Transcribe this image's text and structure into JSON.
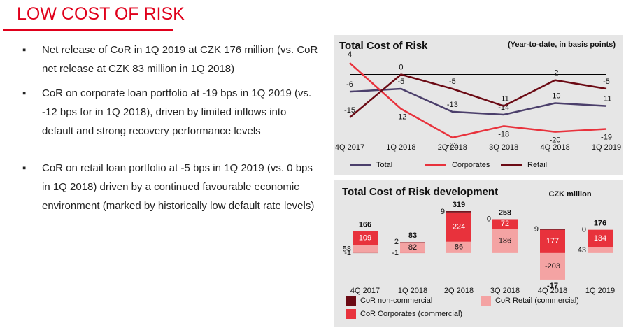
{
  "title": "LOW COST OF RISK",
  "bullets": [
    "Net release of CoR in 1Q 2019 at CZK 176 million (vs. CoR net release at CZK 83 million in 1Q 2018)",
    "CoR on corporate loan portfolio at -19 bps in 1Q 2019 (vs. -12 bps for in 1Q 2018), driven by limited inflows into default and strong recovery performance levels",
    "CoR on retail loan portfolio at -5 bps in 1Q 2019 (vs. 0 bps in 1Q 2018) driven by a continued favourable economic environment (marked by historically low default rate levels)"
  ],
  "chart_data": [
    {
      "type": "line",
      "title": "Total Cost of Risk",
      "subtitle": "(Year-to-date, in basis points)",
      "categories": [
        "4Q 2017",
        "1Q 2018",
        "2Q 2018",
        "3Q 2018",
        "4Q 2018",
        "1Q 2019"
      ],
      "series": [
        {
          "name": "Total",
          "color": "#4b3f6b",
          "values": [
            -6,
            -5,
            -13,
            -14,
            -10,
            -11
          ]
        },
        {
          "name": "Corporates",
          "color": "#e8323c",
          "values": [
            4,
            -12,
            -22,
            -18,
            -20,
            -19
          ]
        },
        {
          "name": "Retail",
          "color": "#6b0a14",
          "values": [
            -15,
            0,
            -5,
            -11,
            -2,
            -5
          ]
        }
      ],
      "ylim": [
        -24,
        5
      ],
      "legend": "bottom"
    },
    {
      "type": "stacked_bar",
      "title": "Total Cost of Risk development",
      "subtitle": "CZK million",
      "categories": [
        "4Q 2017",
        "1Q 2018",
        "2Q 2018",
        "3Q 2018",
        "4Q 2018",
        "1Q 2019"
      ],
      "series": [
        {
          "name": "CoR non-commercial",
          "color": "#6b0a14",
          "values": [
            -1,
            2,
            9,
            0,
            9,
            0
          ]
        },
        {
          "name": "CoR Retail (commercial)",
          "color": "#f4a3a3",
          "values": [
            58,
            82,
            86,
            186,
            -203,
            43
          ]
        },
        {
          "name": "CoR Corporates (commercial)",
          "color": "#e8323c",
          "values": [
            109,
            -1,
            224,
            72,
            177,
            134
          ]
        }
      ],
      "totals": [
        166,
        83,
        319,
        258,
        -17,
        176
      ],
      "ylim": [
        -230,
        330
      ],
      "legend": "bottom"
    }
  ]
}
